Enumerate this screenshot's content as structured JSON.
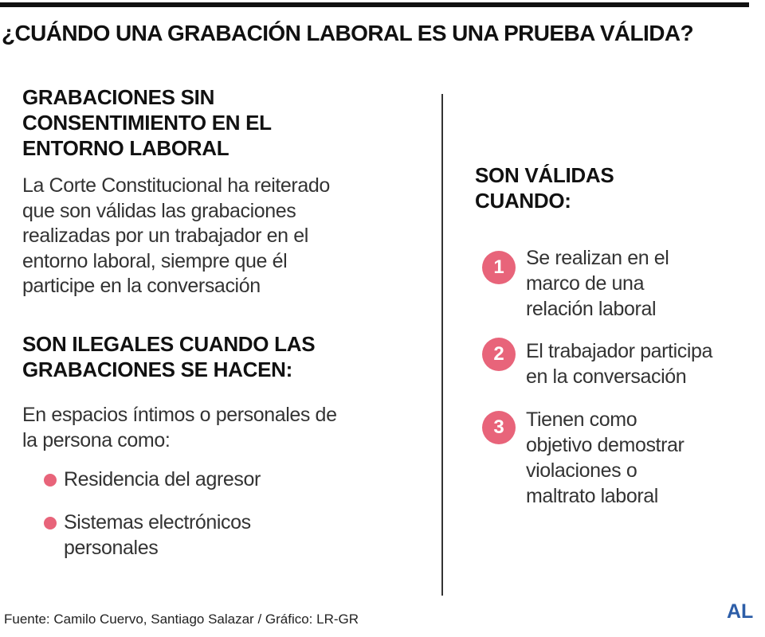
{
  "title": "¿CUÁNDO UNA GRABACIÓN LABORAL ES UNA PRUEBA VÁLIDA?",
  "left": {
    "heading_1": [
      "GRABACIONES SIN",
      "CONSENTIMIENTO EN EL",
      "ENTORNO LABORAL"
    ],
    "paragraph_1": [
      "La Corte Constitucional ha reiterado",
      "que son válidas las grabaciones",
      "realizadas por un trabajador en el",
      "entorno laboral, siempre que él",
      "participe en la conversación"
    ],
    "heading_2": [
      "SON ILEGALES CUANDO LAS",
      "GRABACIONES SE HACEN:"
    ],
    "paragraph_2": [
      "En espacios íntimos o personales de",
      "la persona como:"
    ],
    "bullets": [
      [
        "Residencia del agresor"
      ],
      [
        "Sistemas electrónicos",
        "personales"
      ]
    ]
  },
  "right": {
    "heading": [
      "SON VÁLIDAS",
      "CUANDO:"
    ],
    "items": [
      {
        "number": 1,
        "lines": [
          "Se realizan en el",
          "marco de una",
          "relación laboral"
        ]
      },
      {
        "number": 2,
        "lines": [
          "El trabajador participa",
          "en la conversación"
        ]
      },
      {
        "number": 3,
        "lines": [
          "Tienen como",
          "objetivo demostrar",
          "violaciones o",
          "maltrato laboral"
        ]
      }
    ]
  },
  "source": "Fuente: Camilo Cuervo, Santiago Salazar / Gráfico: LR-GR",
  "logo": "AL"
}
